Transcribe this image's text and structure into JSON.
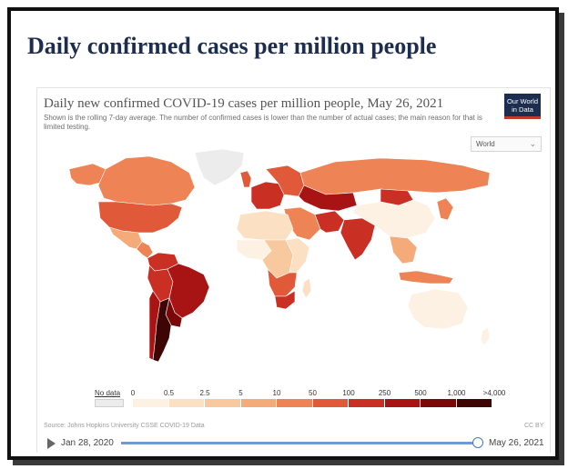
{
  "page": {
    "title_bold": "Daily",
    "title_rest": " confirmed cases per million people"
  },
  "chart": {
    "title": "Daily new confirmed COVID-19 cases per million people, May 26, 2021",
    "subtitle": "Shown is the rolling 7-day average. The number of confirmed cases is lower than the number of actual cases; the main reason for that is limited testing.",
    "logo_line1": "Our World",
    "logo_line2": "in Data",
    "region_select": "World",
    "source": "Source: Johns Hopkins University CSSE COVID-19 Data",
    "license": "CC BY",
    "legend": {
      "nodata_label": "No data",
      "nodata_color": "#ececec",
      "bins": [
        {
          "label": "0",
          "color": "#fdf1e4"
        },
        {
          "label": "0.5",
          "color": "#fbe0c4"
        },
        {
          "label": "2.5",
          "color": "#f8c99f"
        },
        {
          "label": "5",
          "color": "#f4aa79"
        },
        {
          "label": "10",
          "color": "#ee8455"
        },
        {
          "label": "50",
          "color": "#e05a3a"
        },
        {
          "label": "100",
          "color": "#c92f23"
        },
        {
          "label": "250",
          "color": "#a81414"
        },
        {
          "label": "500",
          "color": "#7a0808"
        },
        {
          "label": "1,000",
          "color": "#3e0505"
        }
      ],
      "end_label": ">4,000"
    }
  },
  "timeline": {
    "start": "Jan 28, 2020",
    "end": "May 26, 2021",
    "progress": 1.0
  },
  "regions": [
    {
      "name": "greenland",
      "color": "#ececec"
    },
    {
      "name": "canada",
      "color": "#ee8455"
    },
    {
      "name": "alaska",
      "color": "#ee8455"
    },
    {
      "name": "usa",
      "color": "#e05a3a"
    },
    {
      "name": "mexico",
      "color": "#f4aa79"
    },
    {
      "name": "central-america",
      "color": "#ee8455"
    },
    {
      "name": "colombia-venezuela",
      "color": "#c92f23"
    },
    {
      "name": "brazil",
      "color": "#a81414"
    },
    {
      "name": "peru-bolivia",
      "color": "#c92f23"
    },
    {
      "name": "argentina",
      "color": "#3e0505"
    },
    {
      "name": "uruguay-paraguay",
      "color": "#7a0808"
    },
    {
      "name": "chile",
      "color": "#a81414"
    },
    {
      "name": "iceland-uk",
      "color": "#e05a3a"
    },
    {
      "name": "western-europe",
      "color": "#c92f23"
    },
    {
      "name": "eastern-europe",
      "color": "#e05a3a"
    },
    {
      "name": "russia",
      "color": "#ee8455"
    },
    {
      "name": "central-asia",
      "color": "#a81414"
    },
    {
      "name": "middle-east",
      "color": "#ee8455"
    },
    {
      "name": "iran",
      "color": "#c92f23"
    },
    {
      "name": "india",
      "color": "#c92f23"
    },
    {
      "name": "china",
      "color": "#fdf1e4"
    },
    {
      "name": "mongolia",
      "color": "#c92f23"
    },
    {
      "name": "japan-korea",
      "color": "#ee8455"
    },
    {
      "name": "southeast-asia",
      "color": "#f4aa79"
    },
    {
      "name": "indonesia",
      "color": "#ee8455"
    },
    {
      "name": "north-africa",
      "color": "#fbe0c4"
    },
    {
      "name": "west-africa",
      "color": "#fdf1e4"
    },
    {
      "name": "central-africa",
      "color": "#f8c99f"
    },
    {
      "name": "east-africa",
      "color": "#fbe0c4"
    },
    {
      "name": "southern-africa",
      "color": "#e05a3a"
    },
    {
      "name": "south-africa",
      "color": "#c92f23"
    },
    {
      "name": "madagascar",
      "color": "#fbe0c4"
    },
    {
      "name": "australia",
      "color": "#fdf1e4"
    },
    {
      "name": "new-zealand",
      "color": "#fdf1e4"
    }
  ]
}
